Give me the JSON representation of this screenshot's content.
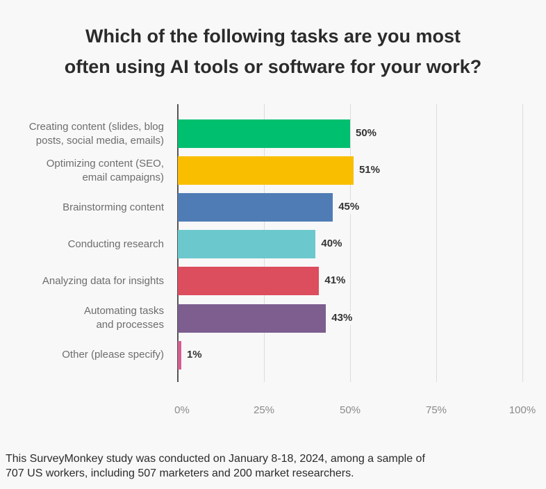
{
  "chart_data": {
    "type": "bar",
    "orientation": "horizontal",
    "title": "Which of the following tasks are you most often using AI tools or software for your work?",
    "categories": [
      "Creating content (slides, blog posts, social media, emails)",
      "Optimizing content (SEO, email campaigns)",
      "Brainstorming content",
      "Conducting research",
      "Analyzing data for insights",
      "Automating tasks and processes",
      "Other (please specify)"
    ],
    "category_lines": [
      "Creating content (slides, blog\nposts, social media, emails)",
      "Optimizing content (SEO,\nemail campaigns)",
      "Brainstorming content",
      "Conducting research",
      "Analyzing data for insights",
      "Automating tasks\nand processes",
      "Other (please specify)"
    ],
    "values": [
      50,
      51,
      45,
      40,
      41,
      43,
      1
    ],
    "data_labels": [
      "50%",
      "51%",
      "45%",
      "40%",
      "41%",
      "43%",
      "1%"
    ],
    "colors": [
      "#00bf6f",
      "#f9be00",
      "#507cb6",
      "#6bc8cd",
      "#dc4d5e",
      "#7d5e8f",
      "#d25f90"
    ],
    "xlim": [
      0,
      100
    ],
    "xticks": [
      0,
      25,
      50,
      75,
      100
    ],
    "xtick_labels": [
      "0%",
      "25%",
      "50%",
      "75%",
      "100%"
    ],
    "grid": true,
    "xlabel": "",
    "ylabel": ""
  },
  "footnote": "This SurveyMonkey study was conducted on January 8-18, 2024, among a sample of\n707 US workers, including 507 marketers and 200 market researchers."
}
